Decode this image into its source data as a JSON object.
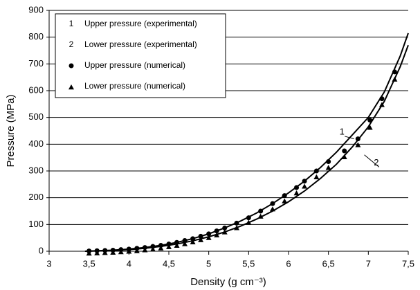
{
  "chart_data": {
    "type": "line",
    "x_label": "Density (g cm⁻³)",
    "y_label": "Pressure (MPa)",
    "xlim": [
      3,
      7.5
    ],
    "ylim": [
      0,
      900
    ],
    "xticks": [
      3,
      {
        "value": 3.5,
        "label": "3,5"
      },
      4,
      {
        "value": 4.5,
        "label": "4,5"
      },
      5,
      {
        "value": 5.5,
        "label": "5,5"
      },
      6,
      {
        "value": 6.5,
        "label": "6,5"
      },
      7,
      {
        "value": 7.5,
        "label": "7,5"
      }
    ],
    "yticks": [
      0,
      100,
      200,
      300,
      400,
      500,
      600,
      700,
      800,
      900
    ],
    "grid": true,
    "legend": "upper left",
    "series": [
      {
        "name": "Upper pressure (experimental)",
        "label": "1",
        "marker": "line",
        "color": "#000000",
        "x": [
          3.45,
          3.6,
          3.8,
          4.0,
          4.2,
          4.4,
          4.6,
          4.8,
          5.0,
          5.2,
          5.4,
          5.6,
          5.8,
          6.0,
          6.2,
          6.4,
          6.6,
          6.8,
          7.0,
          7.2,
          7.4,
          7.5
        ],
        "values": [
          0,
          2,
          4,
          8,
          14,
          22,
          33,
          47,
          65,
          87,
          113,
          143,
          178,
          218,
          262,
          313,
          370,
          435,
          500,
          595,
          730,
          815
        ]
      },
      {
        "name": "Lower pressure (experimental)",
        "label": "2",
        "marker": "line",
        "color": "#000000",
        "x": [
          3.45,
          3.6,
          3.8,
          4.0,
          4.2,
          4.4,
          4.6,
          4.8,
          5.0,
          5.2,
          5.4,
          5.6,
          5.8,
          6.0,
          6.2,
          6.4,
          6.6,
          6.8,
          7.0,
          7.2,
          7.4,
          7.5
        ],
        "values": [
          0,
          1,
          3,
          6,
          11,
          18,
          27,
          39,
          54,
          72,
          94,
          120,
          150,
          185,
          225,
          272,
          325,
          390,
          465,
          560,
          690,
          770
        ]
      },
      {
        "name": "Upper pressure (numerical)",
        "marker": "circle",
        "color": "#000000",
        "x": [
          3.5,
          3.6,
          3.7,
          3.8,
          3.9,
          4.0,
          4.1,
          4.2,
          4.3,
          4.4,
          4.5,
          4.6,
          4.7,
          4.8,
          4.9,
          5.0,
          5.1,
          5.2,
          5.35,
          5.5,
          5.65,
          5.8,
          5.95,
          6.1,
          6.2,
          6.35,
          6.5,
          6.7,
          6.87,
          7.02,
          7.17,
          7.33
        ],
        "values": [
          1,
          2,
          3,
          4,
          6,
          8,
          11,
          14,
          18,
          22,
          27,
          33,
          40,
          47,
          56,
          65,
          76,
          87,
          105,
          125,
          150,
          178,
          208,
          238,
          262,
          300,
          335,
          375,
          420,
          490,
          570,
          670
        ]
      },
      {
        "name": "Lower pressure (numerical)",
        "marker": "triangle",
        "color": "#000000",
        "x": [
          3.5,
          3.6,
          3.7,
          3.8,
          3.9,
          4.0,
          4.1,
          4.2,
          4.3,
          4.4,
          4.5,
          4.6,
          4.7,
          4.8,
          4.9,
          5.0,
          5.1,
          5.2,
          5.35,
          5.5,
          5.65,
          5.8,
          5.95,
          6.1,
          6.2,
          6.35,
          6.5,
          6.7,
          6.87,
          7.02,
          7.17,
          7.33
        ],
        "values": [
          0,
          1,
          2,
          3,
          5,
          7,
          9,
          12,
          15,
          19,
          24,
          29,
          35,
          42,
          50,
          58,
          68,
          79,
          95,
          115,
          138,
          165,
          195,
          225,
          250,
          285,
          320,
          360,
          405,
          470,
          555,
          650
        ]
      }
    ],
    "annotations": [
      {
        "text": "1",
        "x": 6.67,
        "y": 445,
        "target_x": 6.82,
        "target_y": 420
      },
      {
        "text": "2",
        "x": 7.1,
        "y": 330,
        "target_x": 6.95,
        "target_y": 360
      }
    ]
  }
}
